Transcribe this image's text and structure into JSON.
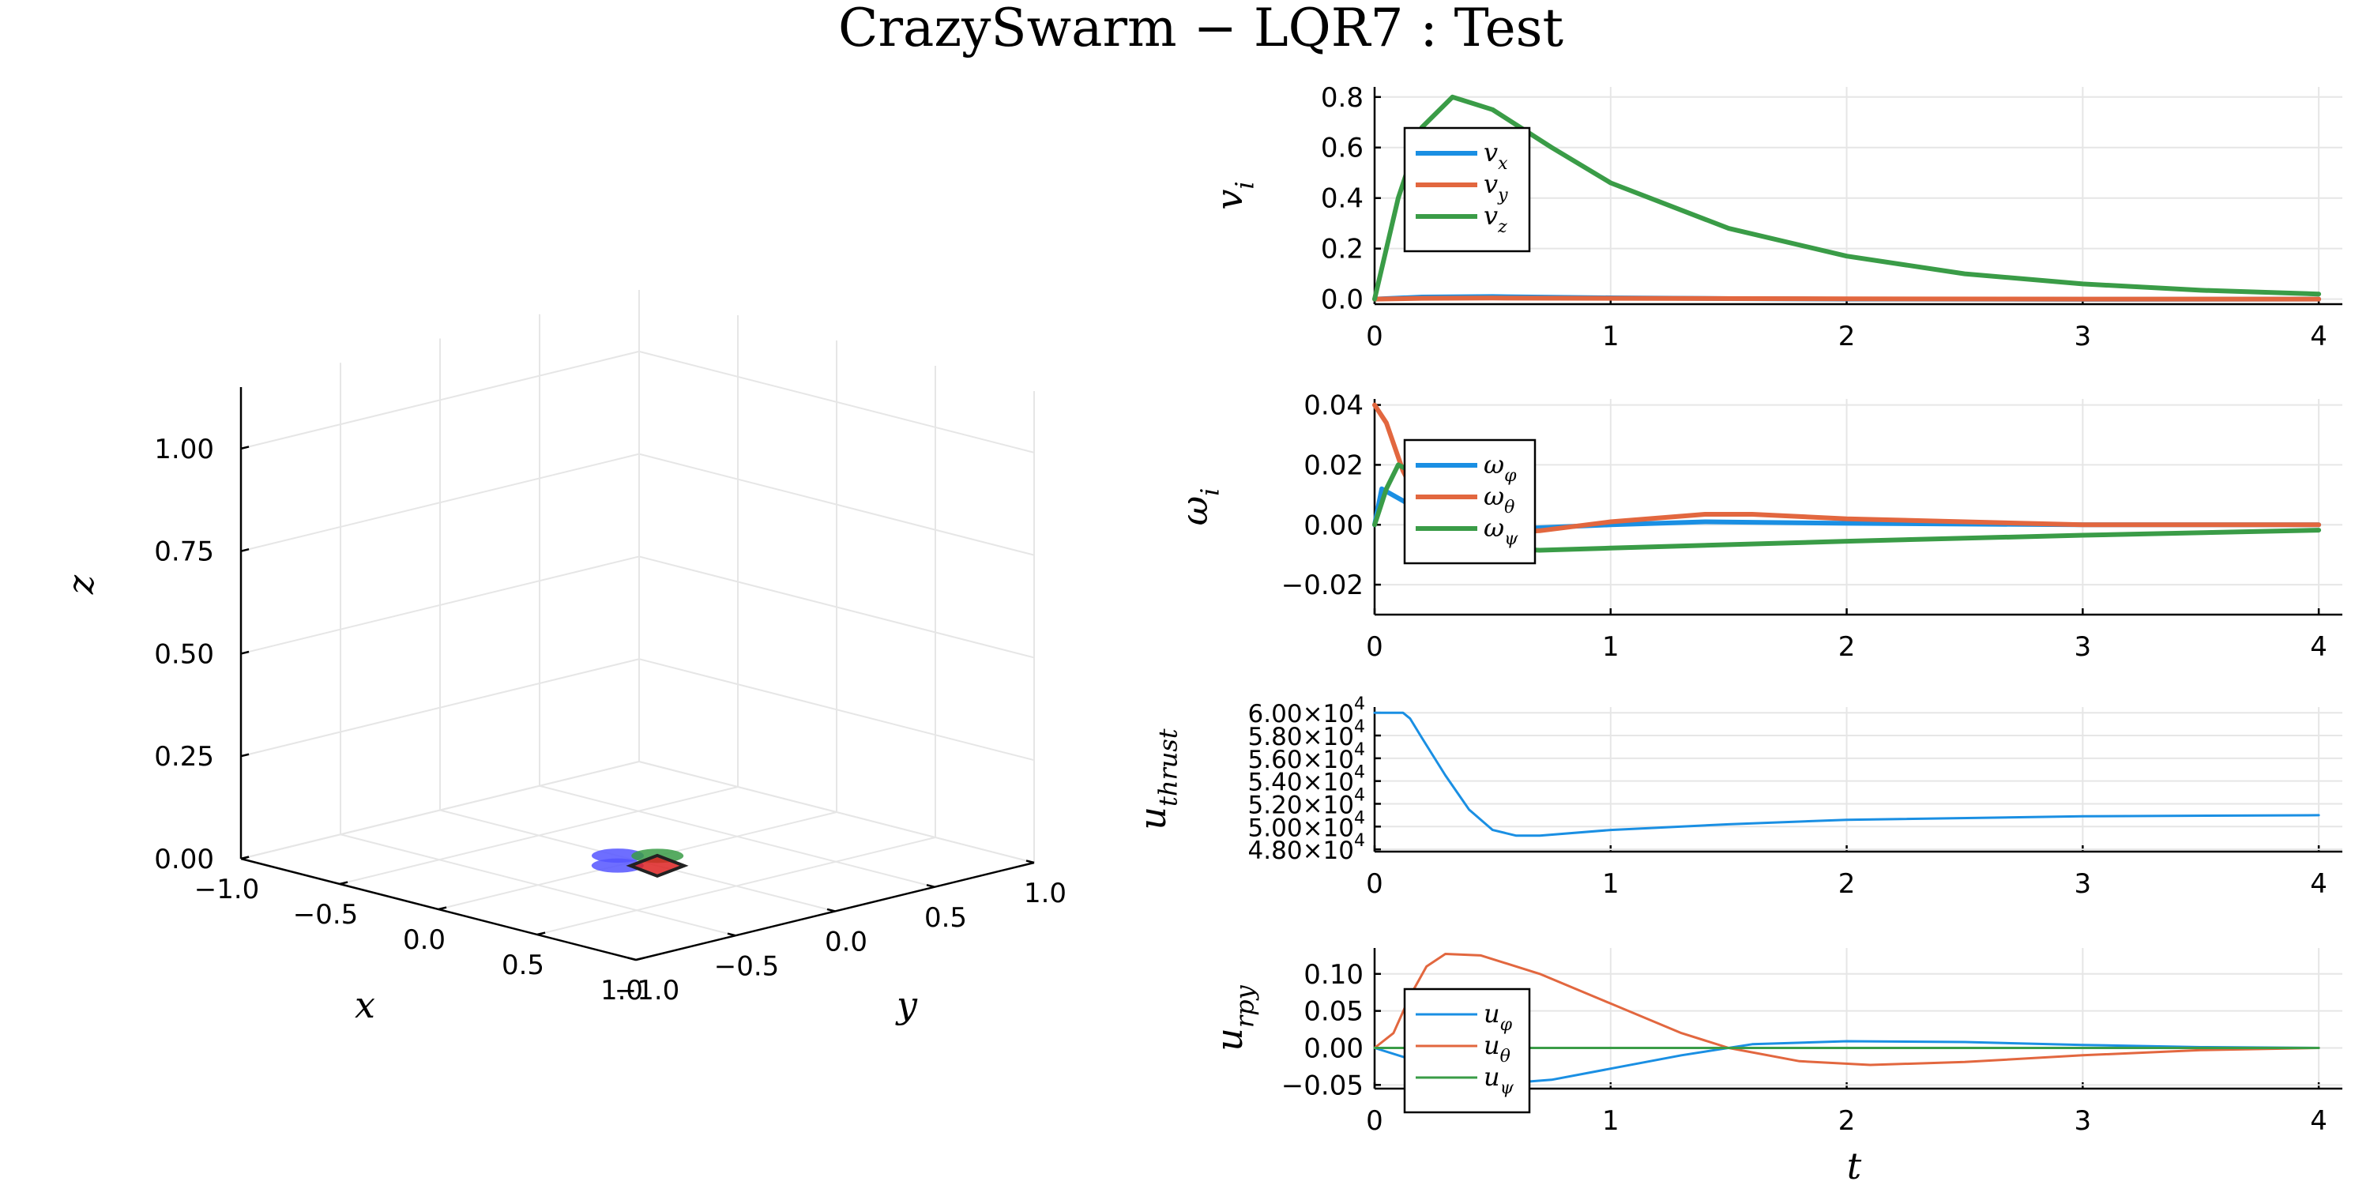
{
  "title": "CrazySwarm − LQR7 :  Test",
  "colors": {
    "c1": "#1a8fe3",
    "c2": "#e2673f",
    "c3": "#3a9c47"
  },
  "chart_data": [
    {
      "id": "scene3d",
      "type": "scatter",
      "xlabel": "x",
      "ylabel": "y",
      "zlabel": "z",
      "xticks": [
        "−1.0",
        "−0.5",
        "0.0",
        "0.5",
        "1.0"
      ],
      "yticks": [
        "−1.0",
        "−0.5",
        "0.0",
        "0.5",
        "1.0"
      ],
      "zticks": [
        "0.00",
        "0.25",
        "0.50",
        "0.75",
        "1.00"
      ],
      "xlim": [
        -1.0,
        1.0
      ],
      "ylim": [
        -1.0,
        1.0
      ],
      "zlim": [
        0.0,
        1.15
      ],
      "objects": [
        {
          "x": -0.1,
          "y": 0.0,
          "z": 0.0,
          "color": "#5555ff"
        },
        {
          "x": 0.0,
          "y": -0.1,
          "z": 0.0,
          "color": "#5555ff"
        },
        {
          "x": 0.0,
          "y": 0.1,
          "z": 0.0,
          "color": "#3a9c47"
        },
        {
          "x": 0.1,
          "y": 0.0,
          "z": 0.0,
          "color": "#dd2222"
        }
      ]
    },
    {
      "id": "vel",
      "type": "line",
      "ylabel": "v_i",
      "xticks": [
        "0",
        "1",
        "2",
        "3",
        "4"
      ],
      "yticks": [
        "0.0",
        "0.2",
        "0.4",
        "0.6",
        "0.8"
      ],
      "xlim": [
        0,
        4.1
      ],
      "ylim": [
        -0.02,
        0.84
      ],
      "legend_position": "top-left",
      "series": [
        {
          "name": "v",
          "sub": "x",
          "color": "#1a8fe3",
          "points": [
            [
              0,
              0
            ],
            [
              0.2,
              0.008
            ],
            [
              0.5,
              0.01
            ],
            [
              1,
              0.005
            ],
            [
              1.5,
              0.002
            ],
            [
              2,
              0.0
            ],
            [
              3,
              -0.001
            ],
            [
              4,
              0.0
            ]
          ]
        },
        {
          "name": "v",
          "sub": "y",
          "color": "#e2673f",
          "points": [
            [
              0,
              0
            ],
            [
              0.2,
              0.003
            ],
            [
              0.5,
              0.004
            ],
            [
              1,
              0.003
            ],
            [
              2,
              0.001
            ],
            [
              3,
              0.0
            ],
            [
              4,
              0.0
            ]
          ]
        },
        {
          "name": "v",
          "sub": "z",
          "color": "#3a9c47",
          "points": [
            [
              0,
              0
            ],
            [
              0.1,
              0.4
            ],
            [
              0.2,
              0.68
            ],
            [
              0.33,
              0.8
            ],
            [
              0.5,
              0.75
            ],
            [
              0.75,
              0.6
            ],
            [
              1,
              0.46
            ],
            [
              1.5,
              0.28
            ],
            [
              2,
              0.17
            ],
            [
              2.5,
              0.1
            ],
            [
              3,
              0.06
            ],
            [
              3.5,
              0.035
            ],
            [
              4,
              0.02
            ]
          ]
        }
      ]
    },
    {
      "id": "omega",
      "type": "line",
      "ylabel": "ω_i",
      "xticks": [
        "0",
        "1",
        "2",
        "3",
        "4"
      ],
      "yticks": [
        "−0.02",
        "0.00",
        "0.02",
        "0.04"
      ],
      "xlim": [
        0,
        4.1
      ],
      "ylim": [
        -0.03,
        0.042
      ],
      "legend_position": "top-left",
      "series": [
        {
          "name": "ω",
          "sub": "φ",
          "color": "#1a8fe3",
          "points": [
            [
              0,
              0
            ],
            [
              0.03,
              0.012
            ],
            [
              0.12,
              0.008
            ],
            [
              0.25,
              0.002
            ],
            [
              0.4,
              -0.002
            ],
            [
              0.7,
              -0.001
            ],
            [
              1,
              0.0
            ],
            [
              1.4,
              0.001
            ],
            [
              2,
              0.0005
            ],
            [
              3,
              0.0
            ],
            [
              4,
              0.0
            ]
          ]
        },
        {
          "name": "ω",
          "sub": "θ",
          "color": "#e2673f",
          "points": [
            [
              0,
              0.04
            ],
            [
              0.05,
              0.034
            ],
            [
              0.12,
              0.018
            ],
            [
              0.2,
              0.006
            ],
            [
              0.3,
              0.0
            ],
            [
              0.45,
              -0.003
            ],
            [
              0.7,
              -0.002
            ],
            [
              1,
              0.001
            ],
            [
              1.4,
              0.0035
            ],
            [
              1.6,
              0.0035
            ],
            [
              2,
              0.002
            ],
            [
              3,
              0.0
            ],
            [
              4,
              0.0
            ]
          ]
        },
        {
          "name": "ω",
          "sub": "ψ",
          "color": "#3a9c47",
          "points": [
            [
              0,
              0
            ],
            [
              0.05,
              0.012
            ],
            [
              0.1,
              0.02
            ],
            [
              0.15,
              0.018
            ],
            [
              0.25,
              0.008
            ],
            [
              0.4,
              -0.003
            ],
            [
              0.55,
              -0.008
            ],
            [
              0.7,
              -0.0085
            ],
            [
              1,
              -0.0078
            ],
            [
              2,
              -0.0055
            ],
            [
              3,
              -0.0035
            ],
            [
              4,
              -0.0018
            ]
          ]
        }
      ]
    },
    {
      "id": "thrust",
      "type": "line",
      "ylabel": "u_thrust",
      "xticks": [
        "0",
        "1",
        "2",
        "3",
        "4"
      ],
      "yticks": [
        "4.80×10",
        "5.00×10",
        "5.20×10",
        "5.40×10",
        "5.60×10",
        "5.80×10",
        "6.00×10"
      ],
      "ytick_exp": "4",
      "xlim": [
        0,
        4.1
      ],
      "ylim": [
        47800,
        60500
      ],
      "series": [
        {
          "name": "u_thrust",
          "color": "#1a8fe3",
          "points": [
            [
              0,
              60000
            ],
            [
              0.12,
              60000
            ],
            [
              0.15,
              59500
            ],
            [
              0.2,
              57800
            ],
            [
              0.3,
              54500
            ],
            [
              0.4,
              51500
            ],
            [
              0.5,
              49700
            ],
            [
              0.6,
              49200
            ],
            [
              0.7,
              49200
            ],
            [
              1,
              49700
            ],
            [
              1.5,
              50200
            ],
            [
              2,
              50600
            ],
            [
              3,
              50900
            ],
            [
              4,
              51000
            ]
          ]
        }
      ]
    },
    {
      "id": "rpy",
      "type": "line",
      "ylabel": "u_rpy",
      "xlabel": "t",
      "xticks": [
        "0",
        "1",
        "2",
        "3",
        "4"
      ],
      "yticks": [
        "−0.05",
        "0.00",
        "0.05",
        "0.10"
      ],
      "xlim": [
        0,
        4.1
      ],
      "ylim": [
        -0.055,
        0.135
      ],
      "legend_position": "top-left",
      "series": [
        {
          "name": "u",
          "sub": "φ",
          "color": "#1a8fe3",
          "points": [
            [
              0,
              0
            ],
            [
              0.15,
              -0.015
            ],
            [
              0.35,
              -0.04
            ],
            [
              0.55,
              -0.048
            ],
            [
              0.75,
              -0.043
            ],
            [
              1,
              -0.028
            ],
            [
              1.3,
              -0.01
            ],
            [
              1.6,
              0.005
            ],
            [
              2,
              0.009
            ],
            [
              2.5,
              0.008
            ],
            [
              3,
              0.004
            ],
            [
              3.5,
              0.001
            ],
            [
              4,
              0.0
            ]
          ]
        },
        {
          "name": "u",
          "sub": "θ",
          "color": "#e2673f",
          "points": [
            [
              0,
              0
            ],
            [
              0.08,
              0.02
            ],
            [
              0.15,
              0.07
            ],
            [
              0.22,
              0.11
            ],
            [
              0.3,
              0.127
            ],
            [
              0.45,
              0.125
            ],
            [
              0.7,
              0.1
            ],
            [
              1,
              0.06
            ],
            [
              1.3,
              0.02
            ],
            [
              1.5,
              0.0
            ],
            [
              1.8,
              -0.018
            ],
            [
              2.1,
              -0.023
            ],
            [
              2.5,
              -0.019
            ],
            [
              3,
              -0.01
            ],
            [
              3.5,
              -0.003
            ],
            [
              4,
              0.0
            ]
          ]
        },
        {
          "name": "u",
          "sub": "ψ",
          "color": "#3a9c47",
          "points": [
            [
              0,
              0
            ],
            [
              4,
              0
            ]
          ]
        }
      ]
    }
  ]
}
